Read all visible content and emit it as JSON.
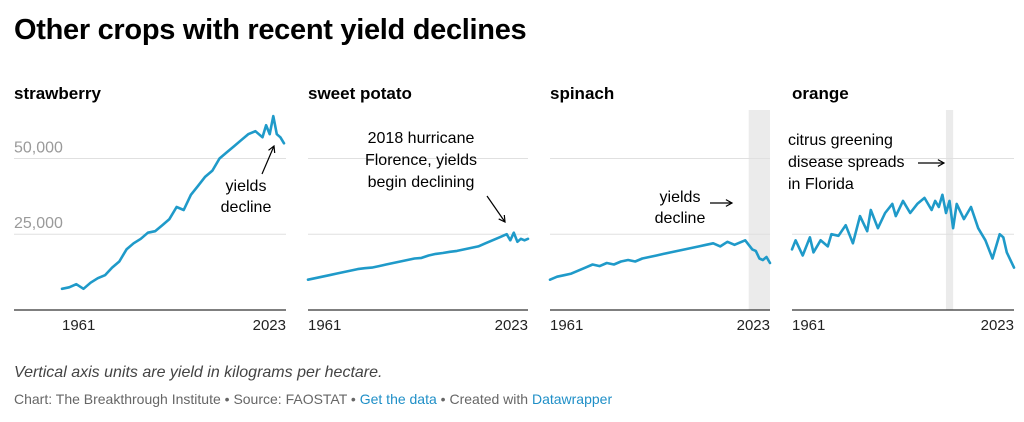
{
  "title": "Other crops with recent yield declines",
  "notes": "Vertical axis units are yield in kilograms per hectare.",
  "footer": {
    "chart_by": "Chart: The Breakthrough Institute",
    "sep1": " • ",
    "source": "Source: FAOSTAT",
    "sep2": " • ",
    "get_data": "Get the data",
    "sep3": " • ",
    "created_with": "Created with ",
    "tool": "Datawrapper"
  },
  "colors": {
    "line": "#1f9ac9",
    "grid": "#e0e0e0",
    "axis": "#333333",
    "shade": "#ebebeb",
    "tick_label": "#9a9a9a"
  },
  "chart_data": [
    {
      "type": "line",
      "title": "strawberry",
      "ylim": [
        0,
        66000
      ],
      "y_ticks": [
        25000,
        50000
      ],
      "y_tick_labels": [
        "25,000",
        "50,000"
      ],
      "x_tick_labels": [
        "1961",
        "2023"
      ],
      "series": [
        {
          "x": [
            1961,
            1963,
            1965,
            1967,
            1969,
            1971,
            1973,
            1975,
            1977,
            1979,
            1981,
            1983,
            1985,
            1987,
            1989,
            1991,
            1993,
            1995,
            1997,
            1999,
            2001,
            2003,
            2005,
            2007,
            2009,
            2011,
            2013,
            2015,
            2017,
            2018,
            2019,
            2020,
            2021,
            2022,
            2023
          ],
          "y": [
            7000,
            7500,
            8500,
            7000,
            9000,
            10500,
            11500,
            14000,
            16000,
            20000,
            22000,
            23500,
            25500,
            26000,
            28000,
            30000,
            34000,
            33000,
            38000,
            41000,
            44000,
            46000,
            50000,
            52000,
            54000,
            56000,
            58000,
            59000,
            57000,
            61000,
            58000,
            64000,
            58000,
            57000,
            55000
          ]
        }
      ],
      "annotations": [
        {
          "text_lines": [
            "yields",
            "decline"
          ]
        }
      ]
    },
    {
      "type": "line",
      "title": "sweet potato",
      "ylim": [
        0,
        66000
      ],
      "y_ticks": [
        25000,
        50000
      ],
      "x_tick_labels": [
        "1961",
        "2023"
      ],
      "series": [
        {
          "x": [
            1961,
            1963,
            1965,
            1967,
            1969,
            1971,
            1973,
            1975,
            1977,
            1979,
            1981,
            1983,
            1985,
            1987,
            1989,
            1991,
            1993,
            1995,
            1997,
            1999,
            2001,
            2003,
            2005,
            2007,
            2009,
            2011,
            2013,
            2015,
            2017,
            2018,
            2019,
            2020,
            2021,
            2022,
            2023
          ],
          "y": [
            10000,
            10500,
            11000,
            11500,
            12000,
            12500,
            13000,
            13500,
            13800,
            14000,
            14500,
            15000,
            15500,
            16000,
            16500,
            17000,
            17200,
            18000,
            18500,
            18800,
            19200,
            19500,
            20000,
            20500,
            21000,
            22000,
            23000,
            24000,
            25000,
            23000,
            25500,
            22500,
            23500,
            23000,
            23500
          ]
        }
      ],
      "annotations": [
        {
          "text_lines": [
            "2018 hurricane",
            "Florence, yields",
            "begin declining"
          ]
        }
      ]
    },
    {
      "type": "line",
      "title": "spinach",
      "ylim": [
        0,
        66000
      ],
      "y_ticks": [
        25000,
        50000
      ],
      "x_tick_labels": [
        "1961",
        "2023"
      ],
      "shaded_period": [
        2017,
        2023
      ],
      "series": [
        {
          "x": [
            1961,
            1963,
            1965,
            1967,
            1969,
            1971,
            1973,
            1975,
            1977,
            1979,
            1981,
            1983,
            1985,
            1987,
            1989,
            1991,
            1993,
            1995,
            1997,
            1999,
            2001,
            2003,
            2005,
            2007,
            2009,
            2011,
            2013,
            2015,
            2016,
            2017,
            2018,
            2019,
            2020,
            2021,
            2022,
            2023
          ],
          "y": [
            10000,
            11000,
            11500,
            12000,
            13000,
            14000,
            15000,
            14500,
            15500,
            15000,
            16000,
            16500,
            16000,
            17000,
            17500,
            18000,
            18500,
            19000,
            19500,
            20000,
            20500,
            21000,
            21500,
            22000,
            21000,
            22500,
            21500,
            22500,
            23000,
            21500,
            20000,
            19500,
            17000,
            16500,
            17500,
            15500
          ]
        }
      ],
      "annotations": [
        {
          "text_lines": [
            "yields",
            "decline"
          ]
        }
      ]
    },
    {
      "type": "line",
      "title": "orange",
      "ylim": [
        0,
        66000
      ],
      "y_ticks": [
        25000,
        50000
      ],
      "x_tick_labels": [
        "1961",
        "2023"
      ],
      "shaded_period": [
        2004,
        2006
      ],
      "series": [
        {
          "x": [
            1961,
            1962,
            1964,
            1966,
            1967,
            1969,
            1971,
            1972,
            1974,
            1976,
            1978,
            1980,
            1982,
            1983,
            1985,
            1987,
            1989,
            1990,
            1992,
            1994,
            1996,
            1998,
            2000,
            2001,
            2002,
            2003,
            2004,
            2005,
            2006,
            2007,
            2009,
            2011,
            2013,
            2015,
            2017,
            2019,
            2020,
            2021,
            2023
          ],
          "y": [
            20000,
            23000,
            18000,
            24000,
            19000,
            23000,
            21000,
            25000,
            24500,
            28000,
            22000,
            31000,
            26000,
            33000,
            27000,
            32000,
            35000,
            31000,
            36000,
            32000,
            35000,
            37000,
            33000,
            36000,
            34000,
            38000,
            32000,
            36000,
            27000,
            35000,
            30000,
            34000,
            27000,
            23000,
            17000,
            25000,
            24000,
            19000,
            14000
          ]
        }
      ],
      "annotations": [
        {
          "text_lines": [
            "citrus greening",
            "disease spreads",
            "in Florida"
          ]
        }
      ]
    }
  ]
}
